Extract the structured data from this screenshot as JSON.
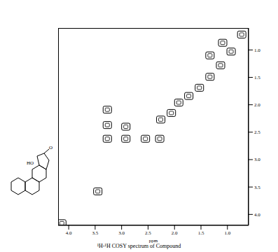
{
  "chart_data": {
    "type": "scatter",
    "title": "¹H-¹H COSY spectrum of Compound",
    "x_label": "ppm",
    "annotations": [
      "HO",
      "O"
    ],
    "x": [
      4.13,
      3.45,
      3.27,
      3.27,
      3.27,
      2.92,
      2.92,
      2.55,
      2.28,
      2.26,
      2.06,
      1.92,
      1.73,
      1.53,
      1.33,
      1.13,
      0.93,
      0.73,
      1.33,
      1.09
    ],
    "values": [
      4.16,
      3.58,
      2.62,
      2.37,
      2.09,
      2.4,
      2.62,
      2.62,
      2.62,
      2.27,
      2.15,
      1.96,
      1.84,
      1.69,
      1.49,
      1.28,
      1.03,
      0.72,
      1.1,
      0.87
    ],
    "color": "#000000",
    "marker": "square",
    "xlim": [
      4.2,
      0.6
    ],
    "ylim": [
      4.2,
      0.6
    ],
    "xticks": [
      {
        "value": 4,
        "label": "4.0"
      },
      {
        "value": 3.5,
        "label": "3.5"
      },
      {
        "value": 3,
        "label": "3.0"
      },
      {
        "value": 2.5,
        "label": "2.5"
      },
      {
        "value": 2,
        "label": "2.0"
      },
      {
        "value": 1.5,
        "label": "1.5"
      },
      {
        "value": 1,
        "label": "1.0"
      }
    ],
    "yticks": [
      {
        "value": 1,
        "label": "1.0"
      },
      {
        "value": 1.5,
        "label": "1.5"
      },
      {
        "value": 2,
        "label": "2.0"
      },
      {
        "value": 2.5,
        "label": "2.5"
      },
      {
        "value": 3,
        "label": "3.0"
      },
      {
        "value": 3.5,
        "label": "3.5"
      },
      {
        "value": 4,
        "label": "4.0"
      }
    ],
    "grid": false
  }
}
